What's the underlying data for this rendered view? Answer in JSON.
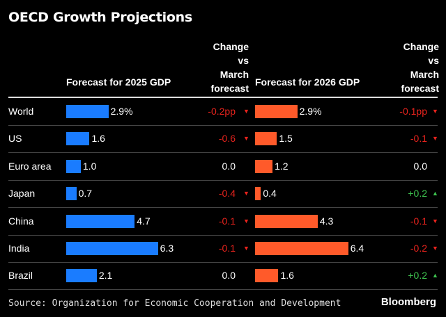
{
  "chart_data": {
    "type": "table",
    "title": "OECD Growth Projections",
    "columns": [
      "Forecast for 2025 GDP",
      "Change vs March forecast",
      "Forecast for 2026 GDP",
      "Change vs March forecast"
    ],
    "col_lines": {
      "change": [
        "Change",
        "vs",
        "March",
        "forecast"
      ]
    },
    "rows": [
      {
        "country": "World",
        "gdp2025": 2.9,
        "label2025": "2.9%",
        "chg2025": "-0.2pp",
        "dir2025": "down",
        "gdp2026": 2.9,
        "label2026": "2.9%",
        "chg2026": "-0.1pp",
        "dir2026": "down"
      },
      {
        "country": "US",
        "gdp2025": 1.6,
        "label2025": "1.6",
        "chg2025": "-0.6",
        "dir2025": "down",
        "gdp2026": 1.5,
        "label2026": "1.5",
        "chg2026": "-0.1",
        "dir2026": "down"
      },
      {
        "country": "Euro area",
        "gdp2025": 1.0,
        "label2025": "1.0",
        "chg2025": "0.0",
        "dir2025": "none",
        "gdp2026": 1.2,
        "label2026": "1.2",
        "chg2026": "0.0",
        "dir2026": "none"
      },
      {
        "country": "Japan",
        "gdp2025": 0.7,
        "label2025": "0.7",
        "chg2025": "-0.4",
        "dir2025": "down",
        "gdp2026": 0.4,
        "label2026": "0.4",
        "chg2026": "+0.2",
        "dir2026": "up"
      },
      {
        "country": "China",
        "gdp2025": 4.7,
        "label2025": "4.7",
        "chg2025": "-0.1",
        "dir2025": "down",
        "gdp2026": 4.3,
        "label2026": "4.3",
        "chg2026": "-0.1",
        "dir2026": "down"
      },
      {
        "country": "India",
        "gdp2025": 6.3,
        "label2025": "6.3",
        "chg2025": "-0.1",
        "dir2025": "down",
        "gdp2026": 6.4,
        "label2026": "6.4",
        "chg2026": "-0.2",
        "dir2026": "down"
      },
      {
        "country": "Brazil",
        "gdp2025": 2.1,
        "label2025": "2.1",
        "chg2025": "0.0",
        "dir2025": "none",
        "gdp2026": 1.6,
        "label2026": "1.6",
        "chg2026": "+0.2",
        "dir2026": "up"
      }
    ],
    "colors": {
      "bar2025": "#1a7cff",
      "bar2026": "#ff5a2a",
      "down": "#e8231d",
      "up": "#3ec24f",
      "neutral": "#ffffff"
    }
  },
  "source": "Source: Organization for Economic Cooperation and Development",
  "logo": "Bloomberg"
}
